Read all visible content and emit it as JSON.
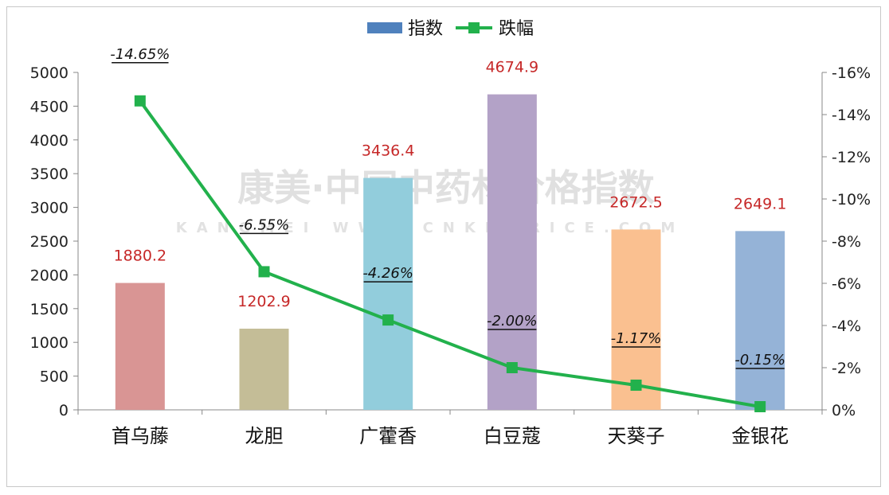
{
  "chart_data": {
    "type": "bar",
    "categories": [
      "首乌藤",
      "龙胆",
      "广藿香",
      "白豆蔻",
      "天葵子",
      "金银花"
    ],
    "series": [
      {
        "name": "指数",
        "type": "bar",
        "axis": "left",
        "values": [
          1880.2,
          1202.9,
          3436.4,
          4674.9,
          2672.5,
          2649.1
        ],
        "value_labels": [
          "1880.2",
          "1202.9",
          "3436.4",
          "4674.9",
          "2672.5",
          "2649.1"
        ],
        "colors": [
          "#d99594",
          "#c4bd97",
          "#92cddc",
          "#b3a2c7",
          "#fac090",
          "#95b3d7"
        ],
        "legend_color": "#4f81bd"
      },
      {
        "name": "跌幅",
        "type": "line",
        "axis": "right",
        "values": [
          -14.65,
          -6.55,
          -4.26,
          -2.0,
          -1.17,
          -0.15
        ],
        "value_labels": [
          "-14.65%",
          "-6.55%",
          "-4.26%",
          "-2.00%",
          "-1.17%",
          "-0.15%"
        ],
        "color": "#22b14c"
      }
    ],
    "y_left": {
      "ylim": [
        0,
        5000
      ],
      "ticks": [
        "0",
        "500",
        "1000",
        "1500",
        "2000",
        "2500",
        "3000",
        "3500",
        "4000",
        "4500",
        "5000"
      ]
    },
    "y_right": {
      "ylim": [
        0,
        -16
      ],
      "ticks": [
        "0%",
        "-2%",
        "-4%",
        "-6%",
        "-8%",
        "-10%",
        "-12%",
        "-14%",
        "-16%"
      ]
    },
    "legend_position": "top-center",
    "grid": false,
    "watermark": {
      "main": "康美·中国中药材价格指数",
      "sub": "KANGMEI   WWW.CNKMPRICE.COM"
    }
  }
}
